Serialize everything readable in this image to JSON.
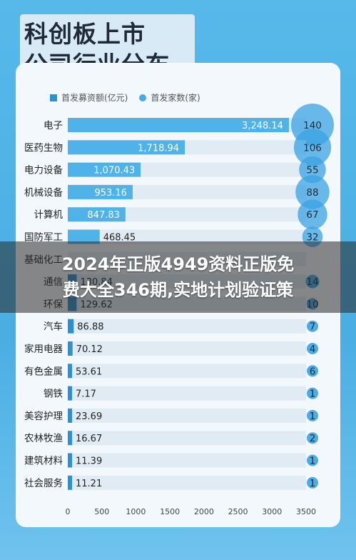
{
  "title_line1": "科创板上市",
  "title_line2": "公司行业分布",
  "legend": {
    "amount": "首发募资额(亿元)",
    "count": "首发家数(家)"
  },
  "overlay_line1": "2024年正版4949资料正版免",
  "overlay_line2": "费大全346期,实地计划验证策",
  "colors": {
    "bar": "#2e8fd1",
    "bar_light": "#4fb3ea",
    "bubble": "#3aa3e3",
    "track": "#e1ebf4"
  },
  "chart_data": {
    "type": "bar",
    "categories": [
      "电子",
      "医药生物",
      "电力设备",
      "机械设备",
      "计算机",
      "国防军工",
      "基础化工",
      "通信",
      "环保",
      "汽车",
      "家用电器",
      "有色金属",
      "钢铁",
      "美容护理",
      "农林牧渔",
      "建筑材料",
      "社会服务"
    ],
    "series": [
      {
        "name": "首发募资额(亿元)",
        "values": [
          3248.14,
          1718.94,
          1070.43,
          953.16,
          847.83,
          468.45,
          null,
          130.84,
          129.62,
          86.88,
          70.12,
          53.61,
          7.17,
          23.69,
          16.67,
          11.39,
          11.21
        ]
      },
      {
        "name": "首发家数(家)",
        "values": [
          140,
          106,
          55,
          88,
          67,
          32,
          null,
          14,
          10,
          7,
          4,
          6,
          1,
          1,
          2,
          1,
          1
        ]
      }
    ],
    "value_labels": [
      "3,248.14",
      "1,718.94",
      "1,070.43",
      "953.16",
      "847.83",
      "468.45",
      "",
      "130.84",
      "129.62",
      "86.88",
      "70.12",
      "53.61",
      "7.17",
      "23.69",
      "16.67",
      "11.39",
      "11.21"
    ],
    "count_labels": [
      "140",
      "106",
      "55",
      "88",
      "67",
      "32",
      "",
      "14",
      "10",
      "7",
      "4",
      "6",
      "1",
      "1",
      "2",
      "1",
      "1"
    ],
    "xlim": [
      0,
      3500
    ],
    "xticks": [
      0,
      500,
      1000,
      1500,
      2000,
      2500,
      3000,
      3500
    ],
    "grid": false,
    "legend_position": "top-left"
  }
}
